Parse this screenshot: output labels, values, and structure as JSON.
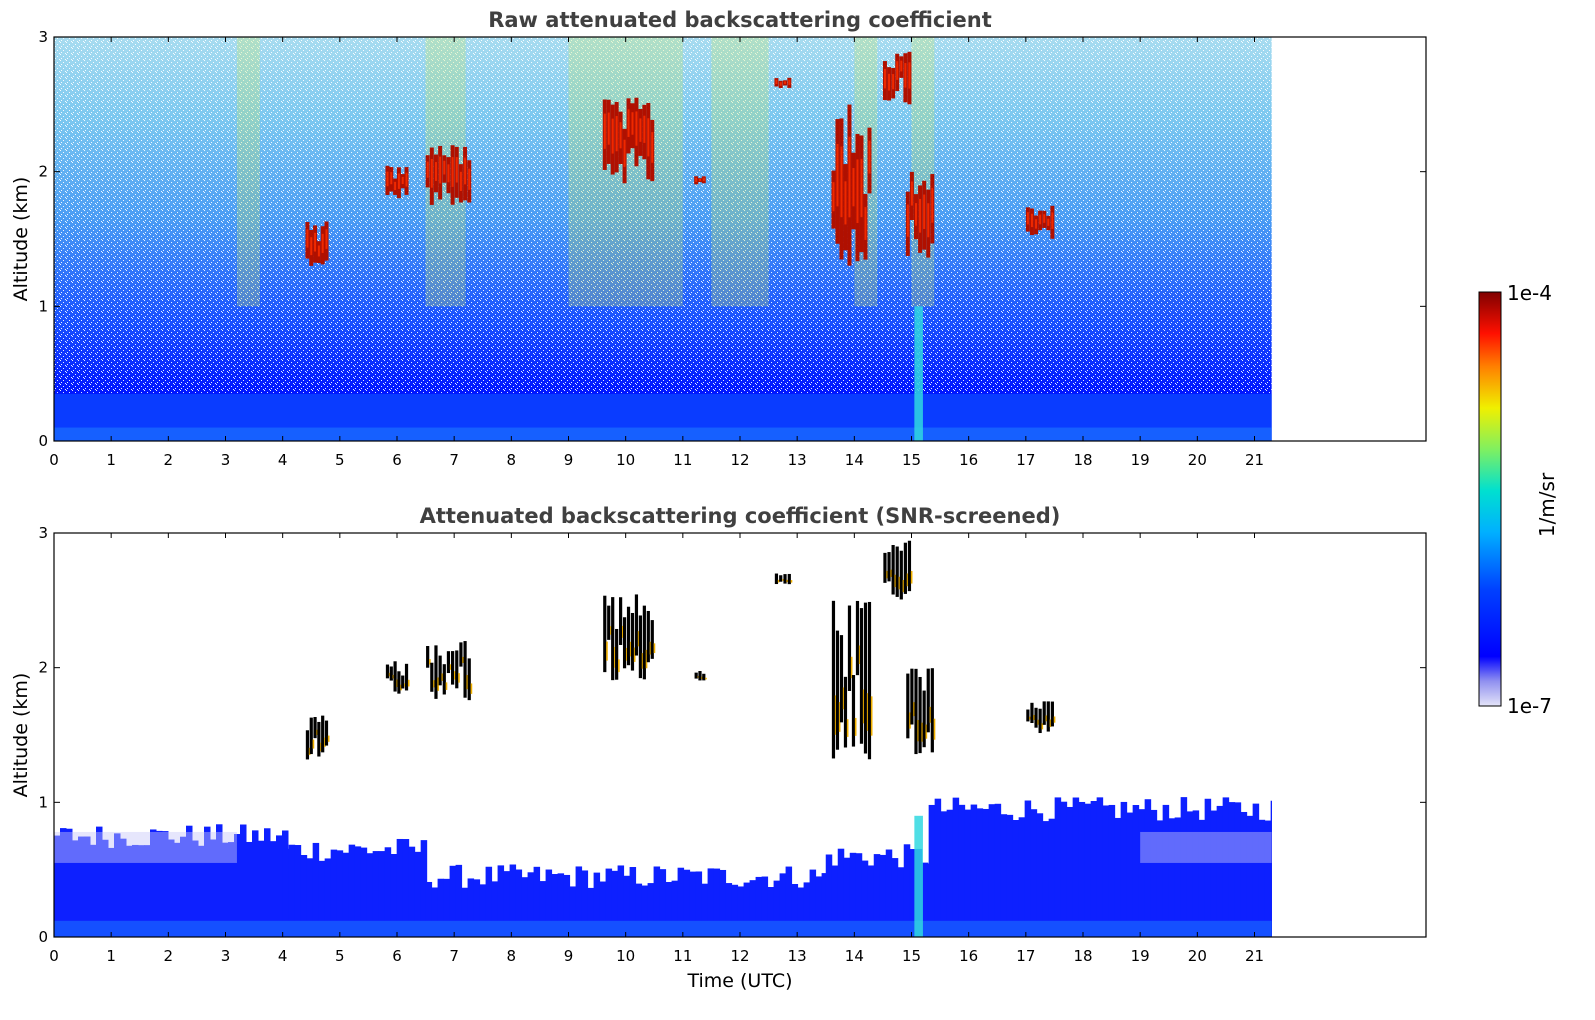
{
  "chart_data": [
    {
      "type": "heatmap",
      "title": "Raw attenuated backscattering coefficient",
      "xlabel": "",
      "ylabel": "Altitude (km)",
      "xlim": [
        0,
        24
      ],
      "ylim": [
        0,
        3
      ],
      "x_ticks": [
        "0",
        "1",
        "2",
        "3",
        "4",
        "5",
        "6",
        "7",
        "8",
        "9",
        "10",
        "11",
        "12",
        "13",
        "14",
        "15",
        "16",
        "17",
        "18",
        "19",
        "20",
        "21"
      ],
      "y_ticks": [
        "0",
        "1",
        "2",
        "3"
      ],
      "data_x_extent": [
        0,
        21.3
      ],
      "screened": false,
      "features": [
        {
          "kind": "boundary_layer",
          "x": [
            0,
            21.3
          ],
          "y_top": 0.35
        },
        {
          "kind": "noise_increase_with_altitude",
          "x": [
            0,
            21.3
          ]
        },
        {
          "kind": "cloud",
          "x": [
            4.4,
            4.8
          ],
          "y": [
            1.3,
            1.65
          ]
        },
        {
          "kind": "cloud",
          "x": [
            5.8,
            6.2
          ],
          "y": [
            1.8,
            2.05
          ]
        },
        {
          "kind": "cloud",
          "x": [
            6.5,
            7.3
          ],
          "y": [
            1.75,
            2.2
          ]
        },
        {
          "kind": "cloud",
          "x": [
            9.6,
            10.5
          ],
          "y": [
            1.9,
            2.55
          ]
        },
        {
          "kind": "cloud",
          "x": [
            11.2,
            11.4
          ],
          "y": [
            1.9,
            1.98
          ]
        },
        {
          "kind": "cloud",
          "x": [
            12.6,
            12.9
          ],
          "y": [
            2.62,
            2.7
          ]
        },
        {
          "kind": "cloud",
          "x": [
            13.6,
            14.3
          ],
          "y": [
            1.3,
            2.5
          ]
        },
        {
          "kind": "cloud",
          "x": [
            14.5,
            15.0
          ],
          "y": [
            2.5,
            2.95
          ]
        },
        {
          "kind": "cloud",
          "x": [
            14.9,
            15.4
          ],
          "y": [
            1.35,
            2.0
          ]
        },
        {
          "kind": "cloud",
          "x": [
            17.0,
            17.5
          ],
          "y": [
            1.5,
            1.75
          ]
        },
        {
          "kind": "plume",
          "x": [
            15.05,
            15.2
          ],
          "y": [
            0,
            1.0
          ]
        }
      ]
    },
    {
      "type": "heatmap",
      "title": "Attenuated backscattering coefficient (SNR-screened)",
      "xlabel": "Time (UTC)",
      "ylabel": "Altitude (km)",
      "xlim": [
        0,
        24
      ],
      "ylim": [
        0,
        3
      ],
      "x_ticks": [
        "0",
        "1",
        "2",
        "3",
        "4",
        "5",
        "6",
        "7",
        "8",
        "9",
        "10",
        "11",
        "12",
        "13",
        "14",
        "15",
        "16",
        "17",
        "18",
        "19",
        "20",
        "21"
      ],
      "y_ticks": [
        "0",
        "1",
        "2",
        "3"
      ],
      "data_x_extent": [
        0,
        21.3
      ],
      "screened": true,
      "features": [
        {
          "kind": "boundary_layer_top",
          "x": [
            0,
            4
          ],
          "y": 0.75
        },
        {
          "kind": "boundary_layer_top",
          "x": [
            4,
            6.5
          ],
          "y": 0.65
        },
        {
          "kind": "boundary_layer_top",
          "x": [
            6.5,
            13.5
          ],
          "y": 0.45
        },
        {
          "kind": "boundary_layer_top",
          "x": [
            13.5,
            15.3
          ],
          "y": 0.6
        },
        {
          "kind": "boundary_layer_top",
          "x": [
            15.3,
            21.3
          ],
          "y": 0.95
        },
        {
          "kind": "cloud",
          "x": [
            4.4,
            4.8
          ],
          "y": [
            1.3,
            1.65
          ]
        },
        {
          "kind": "cloud",
          "x": [
            5.8,
            6.2
          ],
          "y": [
            1.8,
            2.05
          ]
        },
        {
          "kind": "cloud",
          "x": [
            6.5,
            7.3
          ],
          "y": [
            1.75,
            2.2
          ]
        },
        {
          "kind": "cloud",
          "x": [
            9.6,
            10.5
          ],
          "y": [
            1.9,
            2.55
          ]
        },
        {
          "kind": "cloud",
          "x": [
            11.2,
            11.4
          ],
          "y": [
            1.9,
            1.98
          ]
        },
        {
          "kind": "cloud",
          "x": [
            12.6,
            12.9
          ],
          "y": [
            2.62,
            2.7
          ]
        },
        {
          "kind": "cloud",
          "x": [
            13.6,
            14.3
          ],
          "y": [
            1.3,
            2.5
          ]
        },
        {
          "kind": "cloud",
          "x": [
            14.5,
            15.0
          ],
          "y": [
            2.5,
            2.95
          ]
        },
        {
          "kind": "cloud",
          "x": [
            14.9,
            15.4
          ],
          "y": [
            1.35,
            2.0
          ]
        },
        {
          "kind": "cloud",
          "x": [
            17.0,
            17.5
          ],
          "y": [
            1.5,
            1.75
          ]
        },
        {
          "kind": "plume",
          "x": [
            15.05,
            15.2
          ],
          "y": [
            0,
            0.9
          ]
        }
      ]
    }
  ],
  "colorbar": {
    "max_label": "1e-4",
    "min_label": "1e-7",
    "unit_label": "1/m/sr",
    "scale": "log",
    "colors": [
      "#e4e4f8",
      "#b0b0f4",
      "#6060f0",
      "#0000ff",
      "#0040ff",
      "#0080ff",
      "#00c0ff",
      "#00e0e0",
      "#40f0a0",
      "#a0f040",
      "#f0f000",
      "#ffb000",
      "#ff6000",
      "#ff1000",
      "#c00000",
      "#800000"
    ]
  }
}
